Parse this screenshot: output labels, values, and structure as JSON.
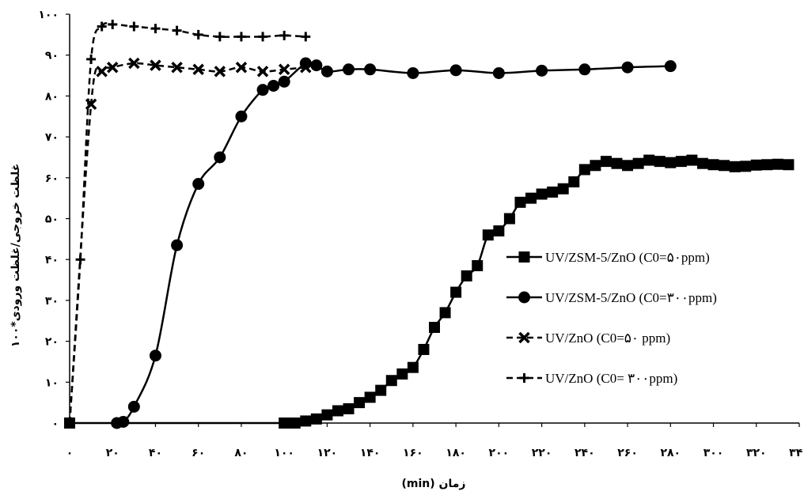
{
  "chart_data": {
    "type": "line",
    "xlabel": "(min) زمان",
    "ylabel": "غلظت خروجی/غلظت ورودی*۱۰۰",
    "xlim": [
      0,
      340
    ],
    "ylim": [
      0,
      100
    ],
    "xticks": [
      0,
      20,
      40,
      60,
      80,
      100,
      120,
      140,
      160,
      180,
      200,
      220,
      240,
      260,
      280,
      300,
      320,
      340
    ],
    "xtick_labels": [
      "۰",
      "۲۰",
      "۴۰",
      "۶۰",
      "۸۰",
      "۱۰۰",
      "۱۲۰",
      "۱۴۰",
      "۱۶۰",
      "۱۸۰",
      "۲۰۰",
      "۲۲۰",
      "۲۴۰",
      "۲۶۰",
      "۲۸۰",
      "۳۰۰",
      "۳۲۰",
      "۳۴۰"
    ],
    "yticks": [
      0,
      10,
      20,
      30,
      40,
      50,
      60,
      70,
      80,
      90,
      100
    ],
    "ytick_labels": [
      "۰",
      "۱۰",
      "۲۰",
      "۳۰",
      "۴۰",
      "۵۰",
      "۶۰",
      "۷۰",
      "۸۰",
      "۹۰",
      "۱۰۰"
    ],
    "grid": false,
    "legend_position": "center-right",
    "series": [
      {
        "name": "UV/ZSM-5/ZnO (C0=۵۰ppm)",
        "marker": "square",
        "line": "solid",
        "x": [
          0,
          100,
          105,
          110,
          115,
          120,
          125,
          130,
          135,
          140,
          145,
          150,
          155,
          160,
          165,
          170,
          175,
          180,
          185,
          190,
          195,
          200,
          205,
          210,
          215,
          220,
          225,
          230,
          235,
          240,
          245,
          250,
          255,
          260,
          265,
          270,
          275,
          280,
          285,
          290,
          295,
          300,
          305,
          310,
          315,
          320,
          325,
          330,
          335
        ],
        "y": [
          0,
          0,
          0,
          0.5,
          1,
          2,
          3,
          3.5,
          5,
          6.3,
          8,
          10.4,
          12,
          13.6,
          18,
          23.4,
          27,
          32,
          36,
          38.5,
          46,
          47,
          50,
          54,
          55,
          56,
          56.5,
          57.3,
          59,
          62,
          63,
          64,
          63.5,
          63,
          63.5,
          64.3,
          64,
          63.7,
          64,
          64.3,
          63.5,
          63.2,
          63,
          62.7,
          62.8,
          63.1,
          63.2,
          63.3,
          63.2
        ]
      },
      {
        "name": "UV/ZSM-5/ZnO (C0=۳۰۰ppm)",
        "marker": "circle",
        "line": "solid",
        "x": [
          22,
          25,
          30,
          40,
          50,
          60,
          70,
          80,
          90,
          95,
          100,
          110,
          115,
          120,
          130,
          140,
          160,
          180,
          200,
          220,
          240,
          260,
          280
        ],
        "y": [
          0,
          0.3,
          4,
          16.5,
          43.5,
          58.5,
          65,
          75,
          81.5,
          82.5,
          83.5,
          88,
          87.5,
          86,
          86.5,
          86.5,
          85.6,
          86.3,
          85.6,
          86.2,
          86.5,
          87,
          87.3
        ]
      },
      {
        "name": "UV/ZnO (C0=۵۰ ppm)",
        "marker": "x",
        "line": "dashed",
        "x": [
          0,
          10,
          15,
          20,
          30,
          40,
          50,
          60,
          70,
          80,
          90,
          100,
          110
        ],
        "y": [
          0,
          78,
          86,
          87,
          88,
          87.5,
          87,
          86.5,
          86,
          87,
          86,
          86.5,
          87
        ]
      },
      {
        "name": "UV/ZnO (C0= ۳۰۰ppm)",
        "marker": "plus",
        "line": "dashed",
        "x": [
          0,
          5,
          10,
          15,
          20,
          30,
          40,
          50,
          60,
          70,
          80,
          90,
          100,
          110
        ],
        "y": [
          0,
          40,
          89,
          97,
          97.5,
          97,
          96.5,
          96,
          95,
          94.5,
          94.5,
          94.5,
          94.8,
          94.5
        ]
      }
    ]
  }
}
